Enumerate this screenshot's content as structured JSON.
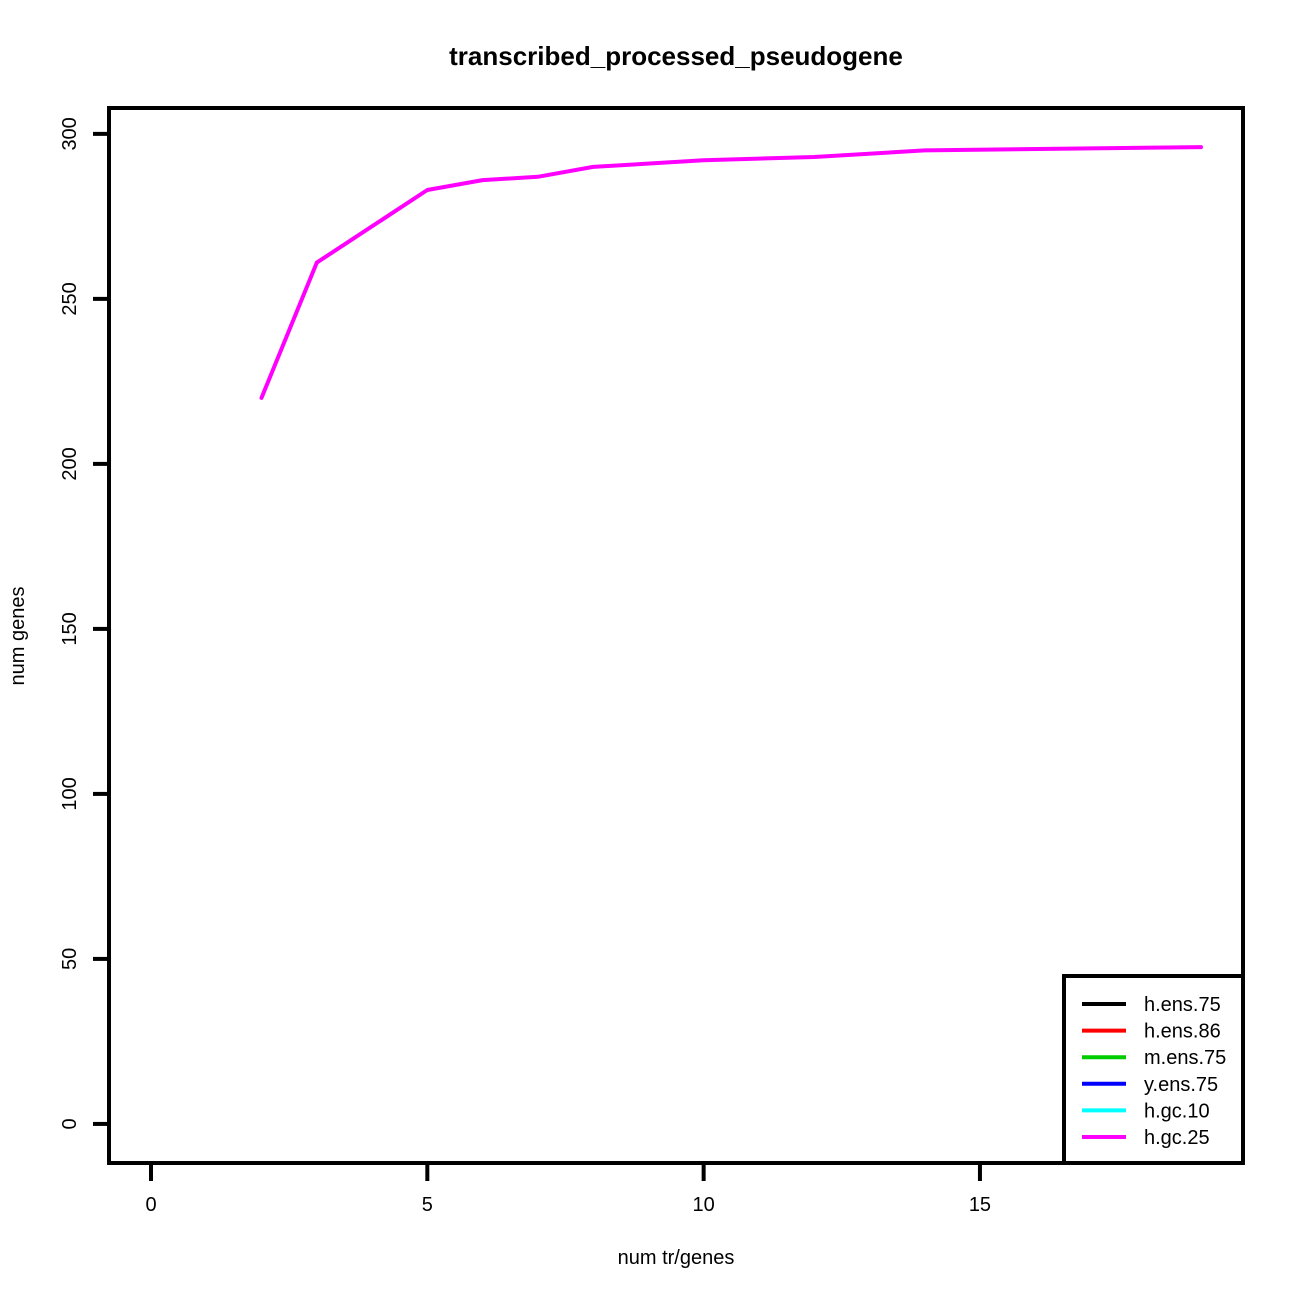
{
  "chart_data": {
    "type": "line",
    "title": "transcribed_processed_pseudogene",
    "xlabel": "num tr/genes",
    "ylabel": "num genes",
    "xlim": [
      -0.76,
      19.76
    ],
    "ylim": [
      -11.84,
      307.84
    ],
    "xticks": [
      0,
      5,
      10,
      15
    ],
    "yticks": [
      0,
      50,
      100,
      150,
      200,
      250,
      300
    ],
    "grid": false,
    "legend_position": "bottom-right",
    "series": [
      {
        "name": "h.ens.75",
        "color": "#000000",
        "x": [],
        "y": []
      },
      {
        "name": "h.ens.86",
        "color": "#ff0000",
        "x": [],
        "y": []
      },
      {
        "name": "m.ens.75",
        "color": "#00cd00",
        "x": [],
        "y": []
      },
      {
        "name": "y.ens.75",
        "color": "#0000ff",
        "x": [],
        "y": []
      },
      {
        "name": "h.gc.10",
        "color": "#00ffff",
        "x": [],
        "y": []
      },
      {
        "name": "h.gc.25",
        "color": "#ff00ff",
        "x": [
          2,
          3,
          5,
          6,
          7,
          8,
          10,
          12,
          14,
          19
        ],
        "y": [
          220,
          261,
          283,
          286,
          287,
          290,
          292,
          293,
          295,
          296
        ]
      }
    ]
  }
}
